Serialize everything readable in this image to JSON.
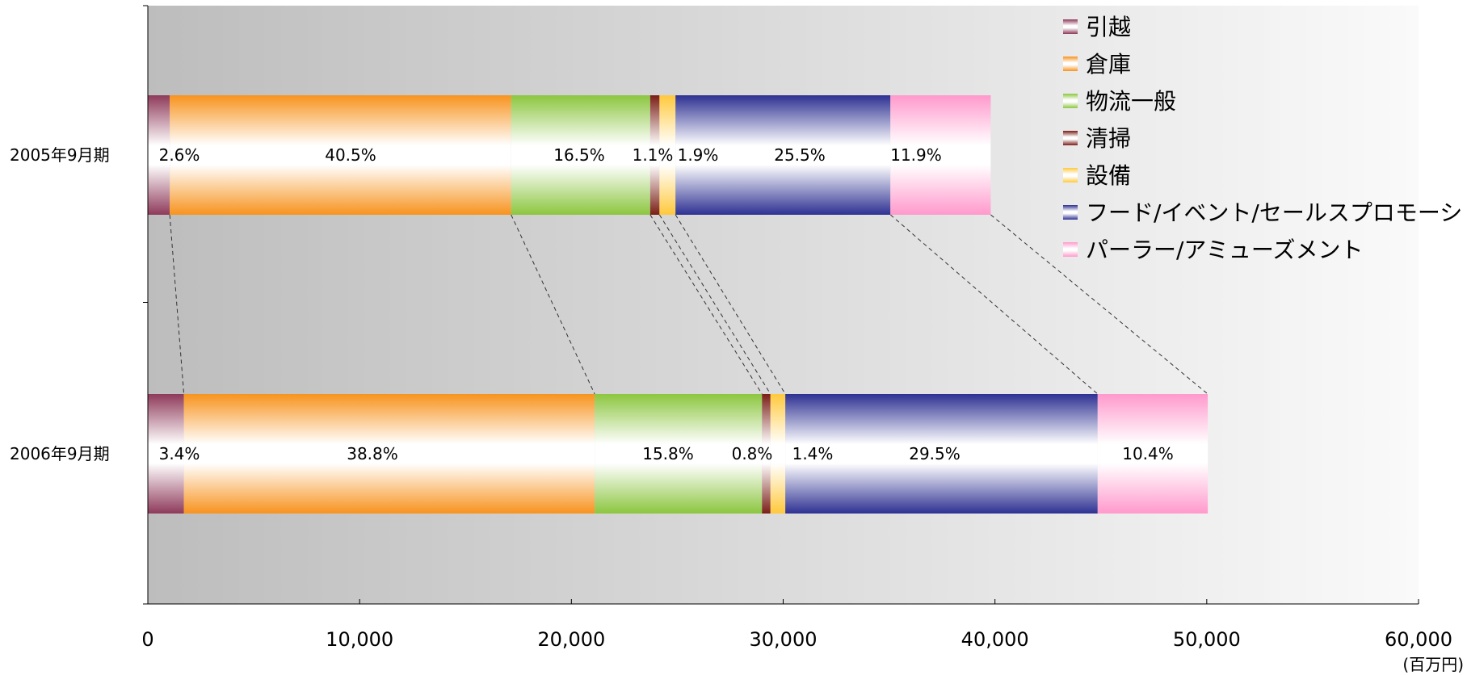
{
  "chart_data": {
    "type": "bar",
    "stacked": true,
    "orientation": "horizontal",
    "categories": [
      "2005年9月期",
      "2006年9月期"
    ],
    "totals": [
      39800,
      50000
    ],
    "x_unit": "(百万円)",
    "xlim": [
      0,
      60000
    ],
    "x_ticks": [
      "0",
      "10,000",
      "20,000",
      "30,000",
      "40,000",
      "50,000",
      "60,000"
    ],
    "legend_position": "top-right",
    "series": [
      {
        "name": "引越",
        "color": "#8e3a5a",
        "values": [
          1035,
          1700
        ],
        "labels": [
          "2.6%",
          "3.4%"
        ]
      },
      {
        "name": "倉庫",
        "color": "#f7931e",
        "values": [
          16119,
          19400
        ],
        "labels": [
          "40.5%",
          "38.8%"
        ]
      },
      {
        "name": "物流一般",
        "color": "#8cc63f",
        "values": [
          6567,
          7900
        ],
        "labels": [
          "16.5%",
          "15.8%"
        ]
      },
      {
        "name": "清掃",
        "color": "#7a1e16",
        "values": [
          438,
          400
        ],
        "labels": [
          "1.1%",
          "0.8%"
        ]
      },
      {
        "name": "設備",
        "color": "#ffc93c",
        "values": [
          756,
          700
        ],
        "labels": [
          "1.9%",
          "1.4%"
        ]
      },
      {
        "name": "フード/イベント/セールスプロモーション",
        "color": "#2e3192",
        "values": [
          10149,
          14750
        ],
        "labels": [
          "25.5%",
          "29.5%"
        ]
      },
      {
        "name": "パーラー/アミューズメント",
        "color": "#ff99cc",
        "values": [
          4736,
          5200
        ],
        "labels": [
          "11.9%",
          "10.4%"
        ]
      }
    ]
  }
}
